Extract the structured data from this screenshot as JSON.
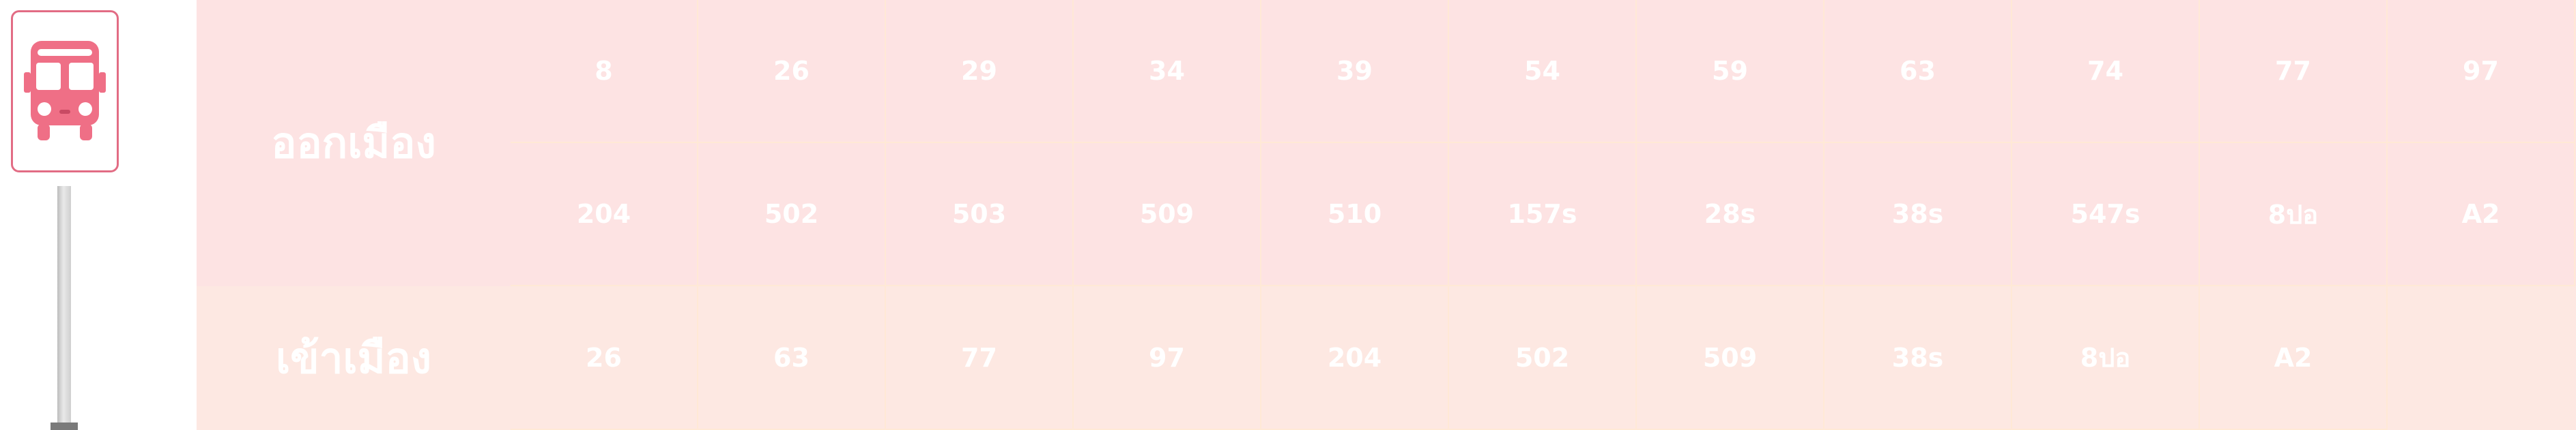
{
  "colors": {
    "board": "#fde3e3",
    "lower_row": "#fde8e2",
    "sign_border": "#e26c84",
    "bus": "#ef6f86"
  },
  "sign": {
    "icon": "bus-icon"
  },
  "outbound": {
    "label": "ออกเมือง",
    "row1": [
      "8",
      "26",
      "29",
      "34",
      "39",
      "54",
      "59",
      "63",
      "74",
      "77",
      "97"
    ],
    "row2": [
      "204",
      "502",
      "503",
      "509",
      "510",
      "157s",
      "28s",
      "38s",
      "547s",
      "8ปอ",
      "A2"
    ]
  },
  "inbound": {
    "label": "เข้าเมือง",
    "row1": [
      "26",
      "63",
      "77",
      "97",
      "204",
      "502",
      "509",
      "38s",
      "8ปอ",
      "A2"
    ]
  }
}
